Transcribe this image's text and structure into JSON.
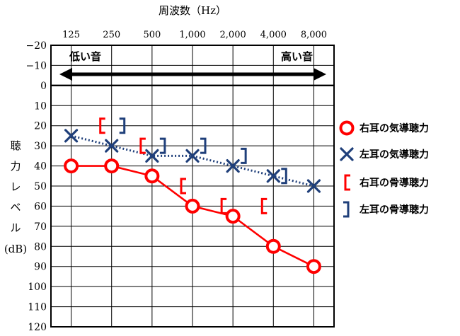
{
  "chart_data": {
    "type": "line",
    "title": "周波数（Hz）",
    "ylabel": [
      "聴",
      "力",
      "レ",
      "ベ",
      "ル",
      "(dB)"
    ],
    "x_categories": [
      "125",
      "250",
      "500",
      "1,000",
      "2,000",
      "4,000",
      "8,000"
    ],
    "y_ticks": [
      -20,
      -10,
      0,
      10,
      20,
      30,
      40,
      50,
      60,
      70,
      80,
      90,
      100,
      110,
      120
    ],
    "y_tick_labels": [
      "−20",
      "−10",
      "0",
      "10",
      "20",
      "30",
      "40",
      "50",
      "60",
      "70",
      "80",
      "90",
      "100",
      "110",
      "120"
    ],
    "ylim": [
      -20,
      120
    ],
    "y_inverted": true,
    "grid": true,
    "arrow": {
      "left_label": "低い音",
      "right_label": "高い音"
    },
    "series": [
      {
        "name": "右耳の気導聴力",
        "marker": "circle",
        "color": "#ff0000",
        "line": "solid",
        "points": [
          [
            "125",
            40
          ],
          [
            "250",
            40
          ],
          [
            "500",
            45
          ],
          [
            "1,000",
            60
          ],
          [
            "2,000",
            65
          ],
          [
            "4,000",
            80
          ],
          [
            "8,000",
            90
          ]
        ]
      },
      {
        "name": "左耳の気導聴力",
        "marker": "cross",
        "color": "#1f3f7a",
        "line": "dotted",
        "points": [
          [
            "125",
            25
          ],
          [
            "250",
            30
          ],
          [
            "500",
            35
          ],
          [
            "1,000",
            35
          ],
          [
            "2,000",
            40
          ],
          [
            "4,000",
            45
          ],
          [
            "8,000",
            50
          ]
        ]
      },
      {
        "name": "右耳の骨導聴力",
        "marker": "bracket-left",
        "color": "#ff0000",
        "line": "none",
        "points": [
          [
            "250",
            20
          ],
          [
            "500",
            30
          ],
          [
            "1,000",
            50
          ],
          [
            "2,000",
            60
          ],
          [
            "4,000",
            60
          ]
        ]
      },
      {
        "name": "左耳の骨導聴力",
        "marker": "bracket-right",
        "color": "#1f3f7a",
        "line": "none",
        "points": [
          [
            "250",
            20
          ],
          [
            "500",
            30
          ],
          [
            "1,000",
            30
          ],
          [
            "2,000",
            35
          ],
          [
            "4,000",
            45
          ]
        ]
      }
    ]
  }
}
